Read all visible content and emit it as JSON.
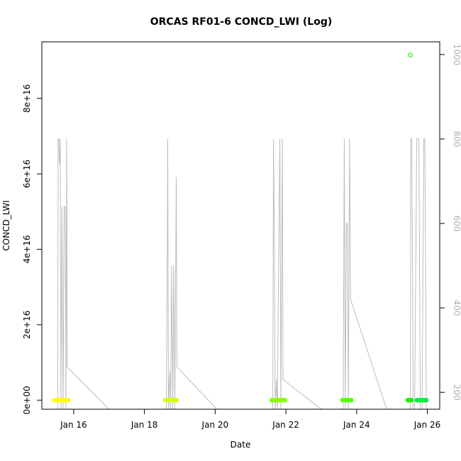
{
  "chart_data": {
    "type": "scatter",
    "title": "ORCAS RF01-6 CONCD_LWI (Log)",
    "xlabel": "Date",
    "ylabel": "CONCD_LWI",
    "x_ticks": [
      "Jan 16",
      "Jan 18",
      "Jan 20",
      "Jan 22",
      "Jan 24",
      "Jan 26"
    ],
    "x_tick_days": [
      16,
      18,
      20,
      22,
      24,
      26
    ],
    "xlim_days": [
      15.1,
      26.35
    ],
    "ylim": [
      -2400000000000000.0,
      9.5e+16
    ],
    "y_ticks": [
      "0e+00",
      "2e+16",
      "4e+16",
      "6e+16",
      "8e+16"
    ],
    "y_tick_values": [
      0,
      2e+16,
      4e+16,
      6e+16,
      8e+16
    ],
    "y2_ticks": [
      "200",
      "400",
      "600",
      "800",
      "1000"
    ],
    "y2_tick_values": [
      200,
      400,
      600,
      800,
      1000
    ],
    "y2lim_reversed": [
      1030,
      160
    ],
    "colors": {
      "altitude_trace": "#bdbdbd",
      "flight1": "#ffff00",
      "flight2": "#d4ff00",
      "flight3": "#88ff00",
      "flight4": "#55ff00",
      "flight5": "#22ee00",
      "flight6": "#00ee44"
    },
    "series": [
      {
        "color": "#ffff00",
        "x_days": [
          15.45,
          15.6,
          15.75,
          15.85
        ],
        "y": [
          0,
          0,
          0,
          0
        ]
      },
      {
        "color": "#d4ff00",
        "x_days": [
          18.6,
          18.75,
          18.9
        ],
        "y": [
          0,
          0,
          0
        ]
      },
      {
        "color": "#88ff00",
        "x_days": [
          21.6,
          21.75,
          21.9,
          21.97
        ],
        "y": [
          0,
          0,
          0,
          0
        ]
      },
      {
        "color": "#55ff00",
        "x_days": [
          23.6,
          23.72,
          23.85
        ],
        "y": [
          0,
          0,
          0
        ]
      },
      {
        "color": "#22ee00",
        "x_days": [
          25.45,
          25.5,
          25.55,
          25.52
        ],
        "y": [
          0,
          0,
          0,
          9.15e+16
        ]
      },
      {
        "color": "#00ee44",
        "x_days": [
          25.7,
          25.8,
          25.9,
          25.97
        ],
        "y": [
          0,
          0,
          0,
          0
        ]
      }
    ],
    "altitude_trace": [
      [
        15.52,
        160
      ],
      [
        15.55,
        160
      ],
      [
        15.56,
        800
      ],
      [
        15.58,
        800
      ],
      [
        15.6,
        740
      ],
      [
        15.62,
        800
      ],
      [
        15.64,
        160
      ],
      [
        15.67,
        640
      ],
      [
        15.7,
        160
      ],
      [
        15.73,
        640
      ],
      [
        15.76,
        640
      ],
      [
        15.78,
        160
      ],
      [
        15.8,
        800
      ],
      [
        15.82,
        260
      ],
      [
        17.0,
        160
      ],
      [
        18.62,
        160
      ],
      [
        18.65,
        580
      ],
      [
        18.66,
        800
      ],
      [
        18.68,
        160
      ],
      [
        18.72,
        250
      ],
      [
        18.74,
        160
      ],
      [
        18.77,
        500
      ],
      [
        18.8,
        160
      ],
      [
        18.83,
        500
      ],
      [
        18.86,
        160
      ],
      [
        18.9,
        710
      ],
      [
        18.92,
        260
      ],
      [
        20.05,
        160
      ],
      [
        21.63,
        160
      ],
      [
        21.65,
        800
      ],
      [
        21.67,
        600
      ],
      [
        21.7,
        160
      ],
      [
        21.73,
        230
      ],
      [
        21.76,
        160
      ],
      [
        21.8,
        550
      ],
      [
        21.83,
        800
      ],
      [
        21.86,
        160
      ],
      [
        21.9,
        800
      ],
      [
        21.92,
        230
      ],
      [
        23.0,
        160
      ],
      [
        23.62,
        160
      ],
      [
        23.65,
        800
      ],
      [
        23.68,
        160
      ],
      [
        23.71,
        600
      ],
      [
        23.74,
        600
      ],
      [
        23.77,
        160
      ],
      [
        23.8,
        800
      ],
      [
        23.83,
        420
      ],
      [
        24.85,
        160
      ],
      [
        25.52,
        160
      ],
      [
        25.53,
        800
      ],
      [
        25.56,
        800
      ],
      [
        25.6,
        160
      ],
      [
        25.64,
        160
      ],
      [
        25.7,
        800
      ],
      [
        25.76,
        800
      ],
      [
        25.8,
        160
      ],
      [
        25.85,
        160
      ],
      [
        25.9,
        800
      ],
      [
        25.93,
        800
      ],
      [
        25.97,
        160
      ]
    ]
  }
}
